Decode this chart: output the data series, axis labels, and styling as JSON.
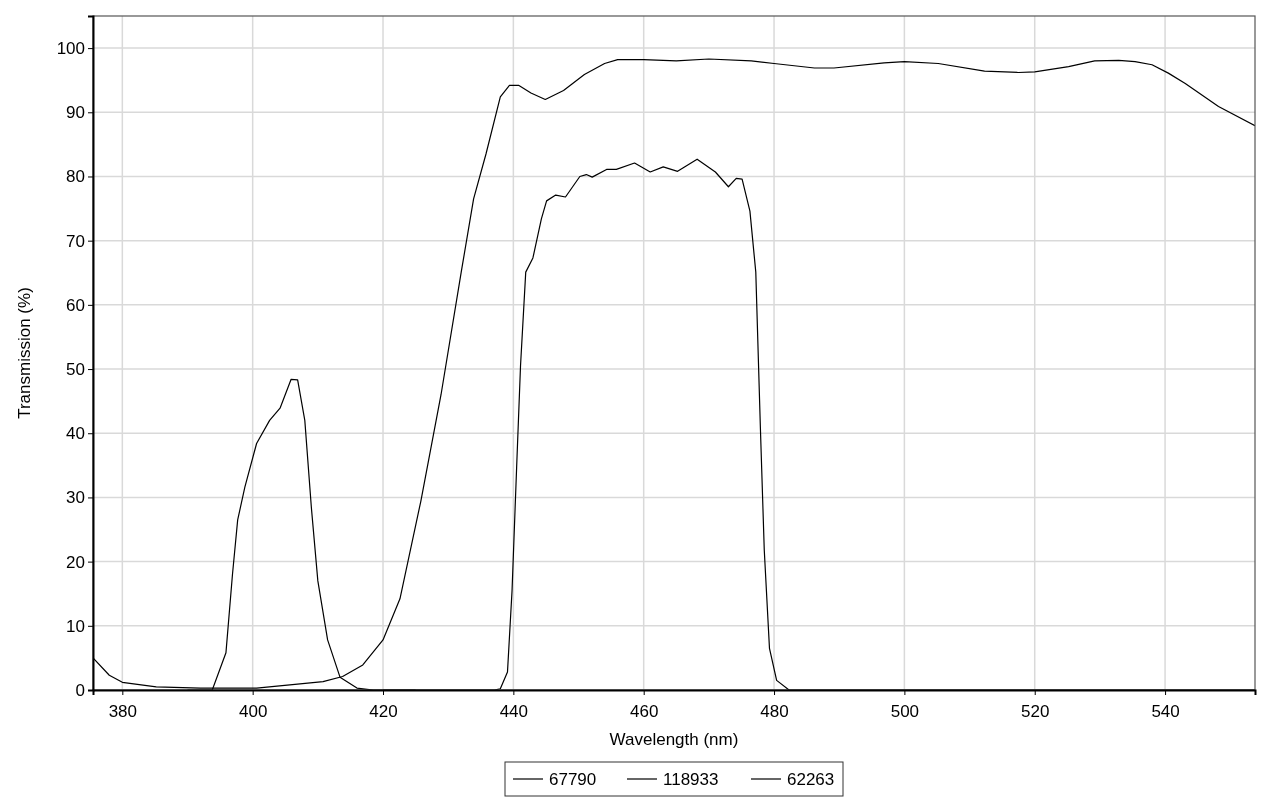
{
  "chart_data": {
    "type": "line",
    "xlabel": "Wavelength (nm)",
    "ylabel": "Transmission (%)",
    "xlim": [
      375.5,
      553.8
    ],
    "ylim": [
      0,
      105
    ],
    "xticks": [
      380,
      400,
      420,
      440,
      460,
      480,
      500,
      520,
      540
    ],
    "yticks": [
      0,
      10,
      20,
      30,
      40,
      50,
      60,
      70,
      80,
      90,
      100
    ],
    "grid": true,
    "legend": "bottom",
    "marker": "none",
    "line_style": "solid",
    "series": [
      {
        "name": "67790",
        "color": "#000000",
        "x": [
          390,
          393.8,
          395.9,
          396.9,
          397.7,
          398.8,
          400.6,
          402.6,
          404.2,
          405.9,
          406.9,
          408,
          409,
          410,
          411.5,
          413.4,
          416,
          418.5,
          425
        ],
        "values": [
          0,
          0,
          5.8,
          18,
          26.5,
          31.6,
          38.4,
          42,
          43.9,
          48.4,
          48.3,
          42,
          28.5,
          17,
          7.8,
          2,
          0.3,
          0,
          0
        ]
      },
      {
        "name": "118933",
        "color": "#000000",
        "x": [
          375.5,
          378,
          380,
          385.2,
          392,
          400.6,
          405.7,
          410.8,
          413.8,
          416.9,
          420,
          422.6,
          425.8,
          428.9,
          432,
          433.9,
          435.8,
          438,
          439.4,
          440.8,
          442.7,
          444.9,
          447.7,
          450.9,
          454,
          456,
          460,
          465,
          470,
          476.5,
          480,
          486.2,
          489.2,
          496.9,
          500,
          505.2,
          512.3,
          517.5,
          520,
          525.2,
          529.2,
          532.9,
          535.4,
          538,
          540.5,
          543.1,
          548.2,
          553.8
        ],
        "values": [
          5,
          2.3,
          1.2,
          0.5,
          0.3,
          0.3,
          0.8,
          1.3,
          2.1,
          3.9,
          7.8,
          14.2,
          29.4,
          46,
          65.1,
          76.5,
          83.5,
          92.4,
          94.2,
          94.2,
          93,
          92,
          93.4,
          95.9,
          97.6,
          98.2,
          98.2,
          98,
          98.3,
          98,
          97.6,
          96.9,
          96.9,
          97.7,
          97.9,
          97.6,
          96.4,
          96.2,
          96.3,
          97.1,
          98,
          98.1,
          97.9,
          97.4,
          96.1,
          94.5,
          90.9,
          87.9
        ]
      },
      {
        "name": "62263",
        "color": "#000000",
        "x": [
          420,
          437.1,
          438,
          439.1,
          439.8,
          440.5,
          441.1,
          441.9,
          443,
          444.3,
          445.1,
          446.5,
          448,
          450.2,
          451.2,
          452.1,
          454.3,
          455.8,
          458.6,
          461,
          463,
          465.2,
          468.2,
          471,
          473,
          474.2,
          475.1,
          476.3,
          477.2,
          477.9,
          478.5,
          479.3,
          480.4,
          482.3,
          553.8
        ],
        "values": [
          0,
          0,
          0.2,
          2.8,
          15.5,
          34.6,
          50.5,
          65.1,
          67.3,
          73.4,
          76.2,
          77.1,
          76.8,
          80,
          80.3,
          79.9,
          81.1,
          81.1,
          82.1,
          80.7,
          81.5,
          80.8,
          82.7,
          80.7,
          78.4,
          79.7,
          79.6,
          74.6,
          65.1,
          41,
          21.8,
          6.5,
          1.5,
          0,
          0
        ]
      }
    ]
  }
}
